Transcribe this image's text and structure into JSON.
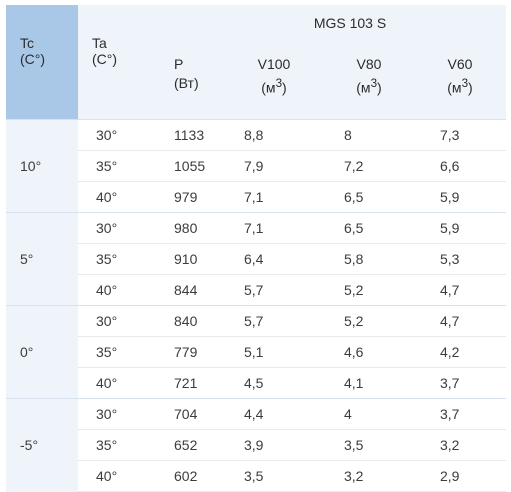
{
  "header": {
    "tc_label": "Tc",
    "tc_unit": "(C°)",
    "ta_label": "Ta",
    "ta_unit": "(C°)",
    "model": "MGS 103 S",
    "p_label": "P",
    "p_unit": "(Вт)",
    "v100_label": "V100",
    "v80_label": "V80",
    "v60_label": "V60",
    "v_unit_prefix": "(м",
    "v_unit_sup": "3",
    "v_unit_suffix": ")"
  },
  "groups": [
    {
      "tc": "10°",
      "rows": [
        {
          "ta": "30°",
          "p": "1133",
          "v100": "8,8",
          "v80": "8",
          "v60": "7,3"
        },
        {
          "ta": "35°",
          "p": "1055",
          "v100": "7,9",
          "v80": "7,2",
          "v60": "6,6"
        },
        {
          "ta": "40°",
          "p": "979",
          "v100": "7,1",
          "v80": "6,5",
          "v60": "5,9"
        }
      ]
    },
    {
      "tc": "5°",
      "rows": [
        {
          "ta": "30°",
          "p": "980",
          "v100": "7,1",
          "v80": "6,5",
          "v60": "5,9"
        },
        {
          "ta": "35°",
          "p": "910",
          "v100": "6,4",
          "v80": "5,8",
          "v60": "5,3"
        },
        {
          "ta": "40°",
          "p": "844",
          "v100": "5,7",
          "v80": "5,2",
          "v60": "4,7"
        }
      ]
    },
    {
      "tc": "0°",
      "rows": [
        {
          "ta": "30°",
          "p": "840",
          "v100": "5,7",
          "v80": "5,2",
          "v60": "4,7"
        },
        {
          "ta": "35°",
          "p": "779",
          "v100": "5,1",
          "v80": "4,6",
          "v60": "4,2"
        },
        {
          "ta": "40°",
          "p": "721",
          "v100": "4,5",
          "v80": "4,1",
          "v60": "3,7"
        }
      ]
    },
    {
      "tc": "-5°",
      "rows": [
        {
          "ta": "30°",
          "p": "704",
          "v100": "4,4",
          "v80": "4",
          "v60": "3,7"
        },
        {
          "ta": "35°",
          "p": "652",
          "v100": "3,9",
          "v80": "3,5",
          "v60": "3,2"
        },
        {
          "ta": "40°",
          "p": "602",
          "v100": "3,5",
          "v80": "3,2",
          "v60": "2,9"
        }
      ]
    }
  ],
  "colors": {
    "tc_header_bg": "#a9c8e8",
    "header_bg": "#eef4fa",
    "tc_column_bg": "#eef4fa",
    "row_border": "#e6ebf0"
  }
}
